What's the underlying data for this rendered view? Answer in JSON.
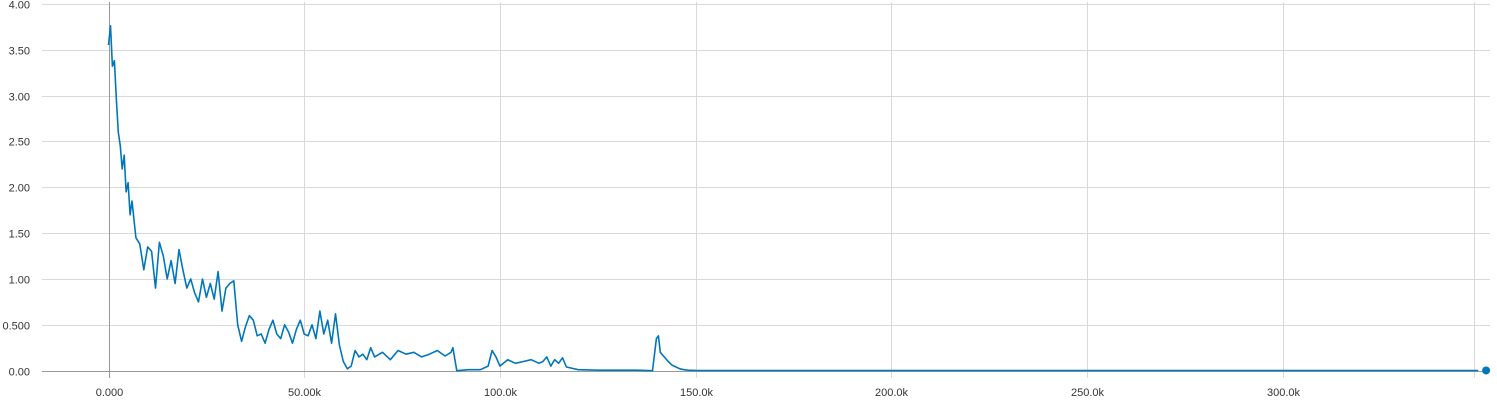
{
  "chart_data": {
    "type": "line",
    "title": "",
    "xlabel": "",
    "ylabel": "",
    "xlim": [
      -17000,
      353000
    ],
    "ylim": [
      -0.08,
      4.02
    ],
    "grid": true,
    "legend": "none",
    "x_ticks": [
      {
        "value": 0,
        "label": "0.000"
      },
      {
        "value": 50000,
        "label": "50.00k"
      },
      {
        "value": 100000,
        "label": "100.0k"
      },
      {
        "value": 150000,
        "label": "150.0k"
      },
      {
        "value": 200000,
        "label": "200.0k"
      },
      {
        "value": 250000,
        "label": "250.0k"
      },
      {
        "value": 300000,
        "label": "300.0k"
      }
    ],
    "y_ticks": [
      {
        "value": 0,
        "label": "0.00"
      },
      {
        "value": 0.5,
        "label": "0.500"
      },
      {
        "value": 1.0,
        "label": "1.00"
      },
      {
        "value": 1.5,
        "label": "1.50"
      },
      {
        "value": 2.0,
        "label": "2.00"
      },
      {
        "value": 2.5,
        "label": "2.50"
      },
      {
        "value": 3.0,
        "label": "3.00"
      },
      {
        "value": 3.5,
        "label": "3.50"
      },
      {
        "value": 4.0,
        "label": "4.00"
      }
    ],
    "series": [
      {
        "color": "#0077bb",
        "x": [
          0,
          500,
          1000,
          1500,
          2000,
          2500,
          3000,
          3500,
          4000,
          4500,
          5000,
          5500,
          6000,
          7000,
          8000,
          9000,
          10000,
          11000,
          12000,
          13000,
          14000,
          15000,
          16000,
          17000,
          18000,
          19000,
          20000,
          21000,
          22000,
          23000,
          24000,
          25000,
          26000,
          27000,
          28000,
          29000,
          30000,
          31000,
          32000,
          33000,
          34000,
          35000,
          36000,
          37000,
          38000,
          39000,
          40000,
          41000,
          42000,
          43000,
          44000,
          45000,
          46000,
          47000,
          48000,
          49000,
          50000,
          51000,
          52000,
          53000,
          54000,
          55000,
          56000,
          57000,
          58000,
          59000,
          60000,
          61000,
          62000,
          63000,
          64000,
          65000,
          66000,
          67000,
          68000,
          70000,
          72000,
          74000,
          76000,
          78000,
          80000,
          82000,
          84000,
          86000,
          87500,
          88000,
          89000,
          92000,
          95000,
          97000,
          98000,
          99000,
          100000,
          102000,
          104000,
          106000,
          108000,
          110000,
          111000,
          112000,
          113000,
          114000,
          115000,
          116000,
          117000,
          118000,
          120000,
          125000,
          130000,
          135000,
          139000,
          140000,
          140500,
          141000,
          142000,
          143000,
          144000,
          145000,
          146000,
          147000,
          148000,
          150000,
          160000,
          180000,
          200000,
          250000,
          300000,
          350000
        ],
        "y": [
          3.55,
          3.76,
          3.32,
          3.38,
          2.95,
          2.6,
          2.45,
          2.2,
          2.35,
          1.95,
          2.05,
          1.7,
          1.85,
          1.45,
          1.38,
          1.1,
          1.35,
          1.3,
          0.9,
          1.4,
          1.25,
          1.0,
          1.2,
          0.95,
          1.32,
          1.1,
          0.9,
          1.0,
          0.85,
          0.75,
          1.0,
          0.8,
          0.95,
          0.78,
          1.08,
          0.65,
          0.9,
          0.95,
          0.98,
          0.5,
          0.32,
          0.48,
          0.6,
          0.55,
          0.38,
          0.4,
          0.3,
          0.45,
          0.55,
          0.4,
          0.35,
          0.5,
          0.42,
          0.3,
          0.45,
          0.55,
          0.4,
          0.38,
          0.5,
          0.35,
          0.65,
          0.4,
          0.55,
          0.3,
          0.62,
          0.28,
          0.1,
          0.02,
          0.05,
          0.22,
          0.15,
          0.18,
          0.12,
          0.25,
          0.15,
          0.2,
          0.12,
          0.22,
          0.18,
          0.2,
          0.15,
          0.18,
          0.22,
          0.16,
          0.2,
          0.25,
          0.0,
          0.01,
          0.01,
          0.05,
          0.22,
          0.15,
          0.05,
          0.12,
          0.08,
          0.1,
          0.12,
          0.08,
          0.1,
          0.15,
          0.05,
          0.12,
          0.08,
          0.14,
          0.04,
          0.03,
          0.01,
          0.005,
          0.005,
          0.005,
          0.0,
          0.35,
          0.38,
          0.2,
          0.15,
          0.1,
          0.06,
          0.04,
          0.02,
          0.01,
          0.005,
          0.003,
          0.002,
          0.002,
          0.002,
          0.002,
          0.002,
          0.002
        ]
      }
    ],
    "end_marker": {
      "x": 352000,
      "y": 0.002
    }
  }
}
